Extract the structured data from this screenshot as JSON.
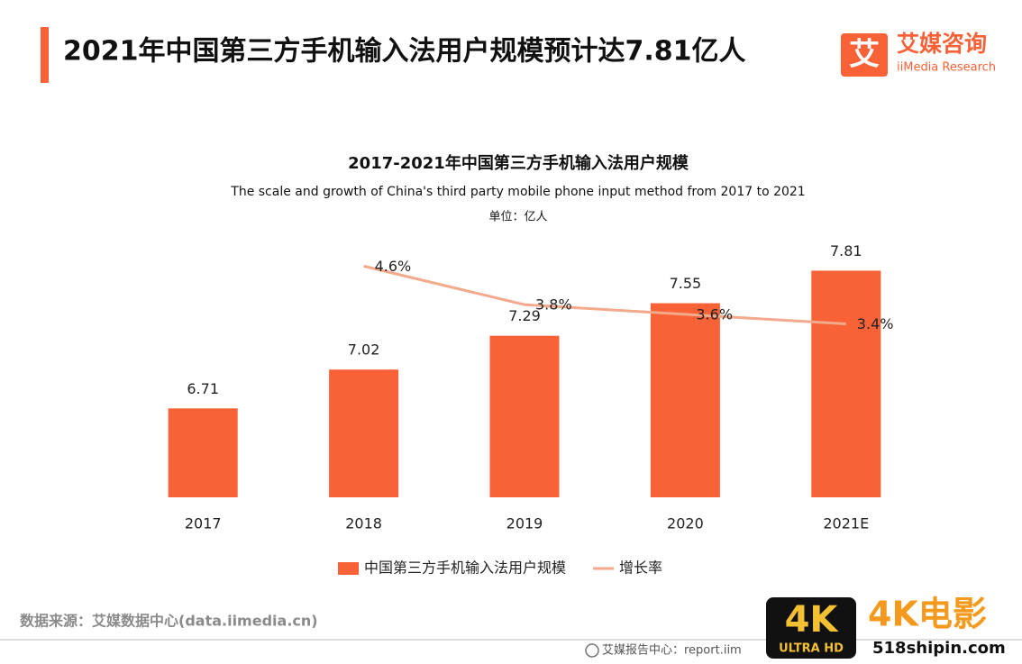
{
  "header": {
    "title": "2021年中国第三方手机输入法用户规模预计达7.81亿人"
  },
  "logo": {
    "icon": "艾",
    "name": "艾媒咨询",
    "name_en": "iiMedia Research"
  },
  "chart_data": {
    "type": "bar",
    "title": "2017-2021年中国第三方手机输入法用户规模",
    "subtitle": "The scale and growth of China's third party  mobile phone input method from 2017 to 2021",
    "unit": "单位：亿人",
    "categories": [
      "2017",
      "2018",
      "2019",
      "2020",
      "2021E"
    ],
    "series": [
      {
        "name": "中国第三方手机输入法用户规模",
        "type": "bar",
        "color": "#f86236",
        "values": [
          6.71,
          7.02,
          7.29,
          7.55,
          7.81
        ]
      },
      {
        "name": "增长率",
        "type": "line",
        "axis": "y2",
        "color": "#f3a98b",
        "values": [
          null,
          4.6,
          3.8,
          3.6,
          3.4
        ],
        "value_labels": [
          null,
          "4.6%",
          "3.8%",
          "3.6%",
          "3.4%"
        ]
      }
    ],
    "ylim": [
      6,
      8
    ],
    "y2lim": [
      -0.2,
      5
    ],
    "legend": "bottom"
  },
  "source": "数据来源：艾媒数据中心(data.iimedia.cn)",
  "footer": {
    "report": "艾媒报告中心：report.iim"
  },
  "watermark": {
    "badge": "4K",
    "badge_sub": "ULTRA HD",
    "brand": "4K电影",
    "site": "518shipin.com"
  }
}
